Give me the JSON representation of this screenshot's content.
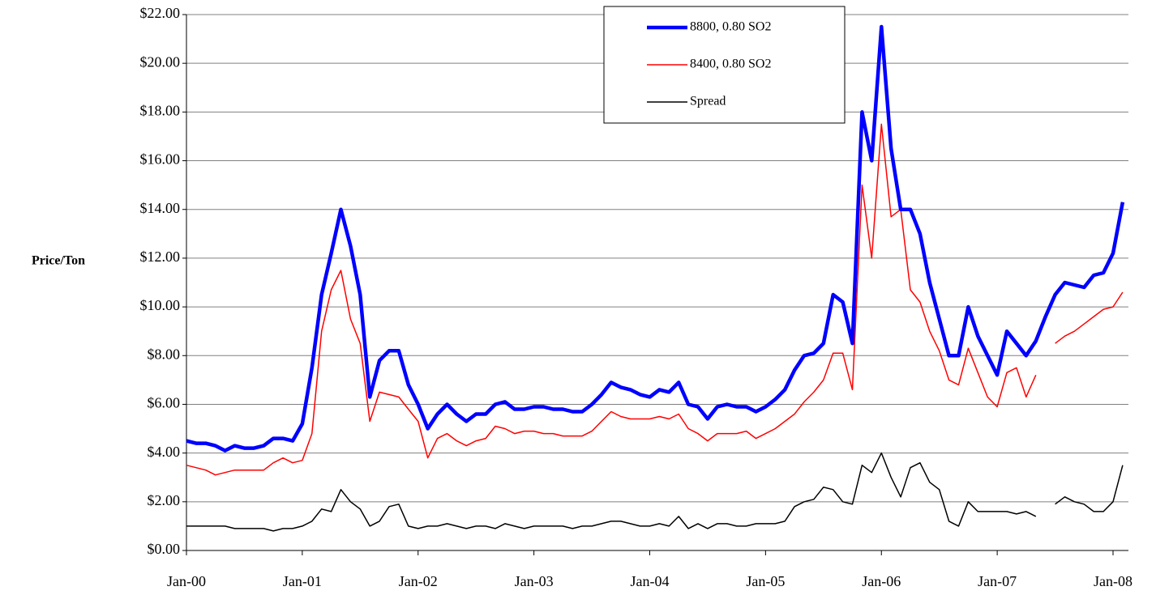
{
  "chart_data": {
    "type": "line",
    "ylabel": "Price/Ton",
    "categories": [
      "Jan-00",
      null,
      null,
      null,
      null,
      null,
      null,
      null,
      null,
      null,
      null,
      null,
      "Jan-01",
      null,
      null,
      null,
      null,
      null,
      null,
      null,
      null,
      null,
      null,
      null,
      "Jan-02",
      null,
      null,
      null,
      null,
      null,
      null,
      null,
      null,
      null,
      null,
      null,
      "Jan-03",
      null,
      null,
      null,
      null,
      null,
      null,
      null,
      null,
      null,
      null,
      null,
      "Jan-04",
      null,
      null,
      null,
      null,
      null,
      null,
      null,
      null,
      null,
      null,
      null,
      "Jan-05",
      null,
      null,
      null,
      null,
      null,
      null,
      null,
      null,
      null,
      null,
      null,
      "Jan-06",
      null,
      null,
      null,
      null,
      null,
      null,
      null,
      null,
      null,
      null,
      null,
      "Jan-07",
      null,
      null,
      null,
      null,
      null,
      null,
      null,
      null,
      null,
      null,
      null,
      "Jan-08",
      null
    ],
    "series": [
      {
        "name": "8800, 0.80 SO2",
        "color": "#0000ff",
        "values": [
          4.5,
          4.4,
          4.4,
          4.3,
          4.1,
          4.3,
          4.2,
          4.2,
          4.3,
          4.6,
          4.6,
          4.5,
          5.2,
          7.5,
          10.5,
          12.2,
          14.0,
          12.5,
          10.5,
          6.3,
          7.8,
          8.2,
          8.2,
          6.8,
          6.0,
          5.0,
          5.6,
          6.0,
          5.6,
          5.3,
          5.6,
          5.6,
          6.0,
          6.1,
          5.8,
          5.8,
          5.9,
          5.9,
          5.8,
          5.8,
          5.7,
          5.7,
          6.0,
          6.4,
          6.9,
          6.7,
          6.6,
          6.4,
          6.3,
          6.6,
          6.5,
          6.9,
          6.0,
          5.9,
          5.4,
          5.9,
          6.0,
          5.9,
          5.9,
          5.7,
          5.9,
          6.2,
          6.6,
          7.4,
          8.0,
          8.1,
          8.5,
          10.5,
          10.2,
          8.5,
          18.0,
          16.0,
          21.5,
          16.5,
          14.0,
          14.0,
          13.0,
          11.0,
          9.5,
          8.0,
          8.0,
          10.0,
          8.8,
          8.0,
          7.2,
          9.0,
          8.5,
          8.0,
          8.6,
          9.6,
          10.5,
          11.0,
          10.9,
          10.8,
          11.3,
          11.4,
          12.2,
          14.3
        ]
      },
      {
        "name": "8400, 0.80 SO2",
        "color": "#ff0000",
        "values": [
          3.5,
          3.4,
          3.3,
          3.1,
          3.2,
          3.3,
          3.3,
          3.3,
          3.3,
          3.6,
          3.8,
          3.6,
          3.7,
          4.8,
          9.0,
          10.7,
          11.5,
          9.5,
          8.5,
          5.3,
          6.5,
          6.4,
          6.3,
          5.8,
          5.3,
          3.8,
          4.6,
          4.8,
          4.5,
          4.3,
          4.5,
          4.6,
          5.1,
          5.0,
          4.8,
          4.9,
          4.9,
          4.8,
          4.8,
          4.7,
          4.7,
          4.7,
          4.9,
          5.3,
          5.7,
          5.5,
          5.4,
          5.4,
          5.4,
          5.5,
          5.4,
          5.6,
          5.0,
          4.8,
          4.5,
          4.8,
          4.8,
          4.8,
          4.9,
          4.6,
          4.8,
          5.0,
          5.3,
          5.6,
          6.1,
          6.5,
          7.0,
          8.1,
          8.1,
          6.6,
          15.0,
          12.0,
          17.5,
          13.7,
          14.0,
          10.7,
          10.2,
          9.0,
          8.2,
          7.0,
          6.8,
          8.3,
          7.3,
          6.3,
          5.9,
          7.3,
          7.5,
          6.3,
          7.2,
          null,
          8.5,
          8.8,
          9.0,
          9.3,
          9.6,
          9.9,
          10.0,
          10.6
        ]
      },
      {
        "name": "Spread",
        "color": "#000000",
        "values": [
          1.0,
          1.0,
          1.0,
          1.0,
          1.0,
          0.9,
          0.9,
          0.9,
          0.9,
          0.8,
          0.9,
          0.9,
          1.0,
          1.2,
          1.7,
          1.6,
          2.5,
          2.0,
          1.7,
          1.0,
          1.2,
          1.8,
          1.9,
          1.0,
          0.9,
          1.0,
          1.0,
          1.1,
          1.0,
          0.9,
          1.0,
          1.0,
          0.9,
          1.1,
          1.0,
          0.9,
          1.0,
          1.0,
          1.0,
          1.0,
          0.9,
          1.0,
          1.0,
          1.1,
          1.2,
          1.2,
          1.1,
          1.0,
          1.0,
          1.1,
          1.0,
          1.4,
          0.9,
          1.1,
          0.9,
          1.1,
          1.1,
          1.0,
          1.0,
          1.1,
          1.1,
          1.1,
          1.2,
          1.8,
          2.0,
          2.1,
          2.6,
          2.5,
          2.0,
          1.9,
          3.5,
          3.2,
          4.0,
          3.0,
          2.2,
          3.4,
          3.6,
          2.8,
          2.5,
          1.2,
          1.0,
          2.0,
          1.6,
          1.6,
          1.6,
          1.6,
          1.5,
          1.6,
          1.4,
          null,
          1.9,
          2.2,
          2.0,
          1.9,
          1.6,
          1.6,
          2.0,
          3.5
        ]
      }
    ],
    "ylim": [
      0,
      22
    ],
    "yticks": [
      {
        "value": 0,
        "label": "$0.00"
      },
      {
        "value": 2,
        "label": "$2.00"
      },
      {
        "value": 4,
        "label": "$4.00"
      },
      {
        "value": 6,
        "label": "$6.00"
      },
      {
        "value": 8,
        "label": "$8.00"
      },
      {
        "value": 10,
        "label": "$10.00"
      },
      {
        "value": 12,
        "label": "$12.00"
      },
      {
        "value": 14,
        "label": "$14.00"
      },
      {
        "value": 16,
        "label": "$16.00"
      },
      {
        "value": 18,
        "label": "$18.00"
      },
      {
        "value": 20,
        "label": "$20.00"
      },
      {
        "value": 22,
        "label": "$22.00"
      }
    ],
    "grid": true,
    "legend": "top"
  }
}
